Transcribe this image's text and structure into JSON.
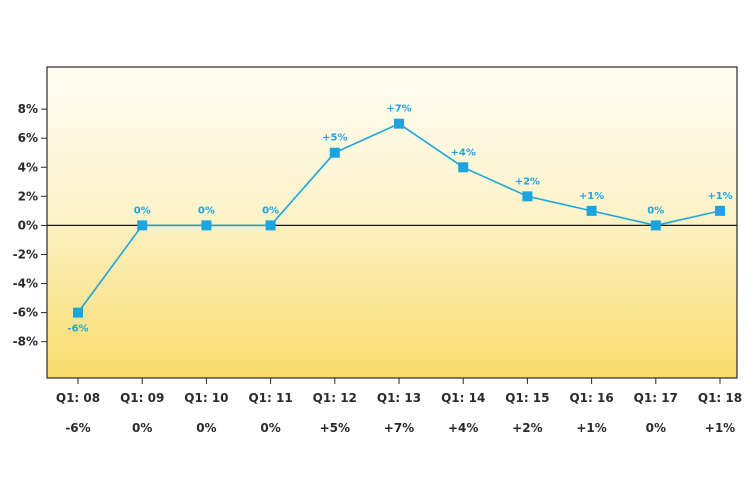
{
  "chart_data": {
    "type": "line",
    "categories": [
      "Q1: 08",
      "Q1: 09",
      "Q1: 10",
      "Q1: 11",
      "Q1: 12",
      "Q1: 13",
      "Q1: 14",
      "Q1: 15",
      "Q1: 16",
      "Q1: 17",
      "Q1: 18"
    ],
    "values": [
      -6,
      0,
      0,
      0,
      5,
      7,
      4,
      2,
      1,
      0,
      1
    ],
    "value_labels": [
      "-6%",
      "0%",
      "0%",
      "0%",
      "+5%",
      "+7%",
      "+4%",
      "+2%",
      "+1%",
      "0%",
      "+1%"
    ],
    "bottom_labels": [
      "-6%",
      "0%",
      "0%",
      "0%",
      "+5%",
      "+7%",
      "+4%",
      "+2%",
      "+1%",
      "0%",
      "+1%"
    ],
    "y_ticks": [
      8,
      6,
      4,
      2,
      0,
      -2,
      -4,
      -6,
      -8
    ],
    "y_tick_labels": [
      "8%",
      "6%",
      "4%",
      "2%",
      "0%",
      "-2%",
      "-4%",
      "-6%",
      "-8%"
    ],
    "ylim": [
      -10.5,
      10.9
    ],
    "title": "",
    "xlabel": "",
    "ylabel": "",
    "grid": false,
    "colors": {
      "series": "#1ba5e0",
      "label_color": "#1ba5e0",
      "bg_top": "#fffdf3",
      "bg_bottom": "#f8dc6a",
      "frame": "#2a2a2a",
      "zero_line": "#1a1a1a"
    }
  }
}
